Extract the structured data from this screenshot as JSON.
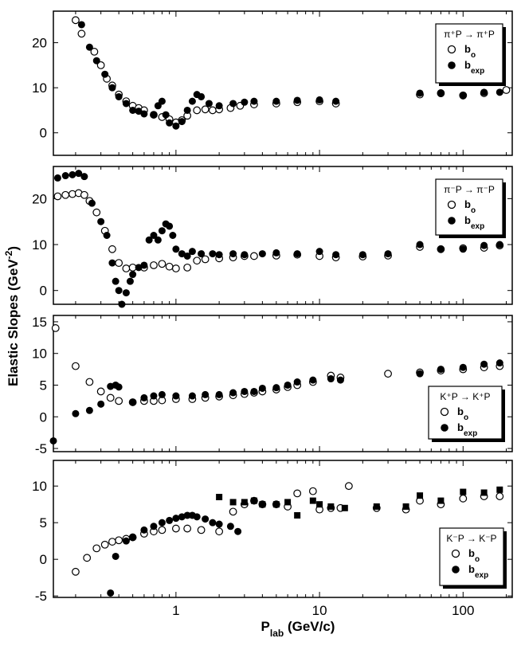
{
  "figure": {
    "ylabel": "Elastic Slopes (GeV",
    "ylabel_sup": "-2",
    "ylabel_close": ")",
    "xlabel_main": "P",
    "xlabel_sub": "lab",
    "xlabel_unit": " (GeV/c)",
    "x_tick_labels": [
      "1",
      "10",
      "100"
    ]
  },
  "chart_data": [
    {
      "type": "scatter",
      "title": "",
      "legend": {
        "reaction": "π⁺P → π⁺P",
        "placement": "top-right"
      },
      "xscale": "log",
      "xlim": [
        0.14,
        220
      ],
      "ylim": [
        -5,
        27
      ],
      "yticks": [
        0,
        10,
        20
      ],
      "series": [
        {
          "name": "b_o",
          "marker": "open-circle",
          "x": [
            0.2,
            0.22,
            0.27,
            0.3,
            0.33,
            0.36,
            0.4,
            0.45,
            0.5,
            0.55,
            0.6,
            0.7,
            0.8,
            0.9,
            1.0,
            1.1,
            1.2,
            1.4,
            1.6,
            1.8,
            2.0,
            2.4,
            2.8,
            3.5,
            5,
            7,
            10,
            13,
            50,
            70,
            100,
            140,
            200
          ],
          "y": [
            25,
            22,
            18,
            15,
            12,
            10.5,
            8.5,
            7,
            6,
            5.5,
            5,
            4,
            3.5,
            3,
            2.3,
            2.8,
            3.8,
            5,
            5.2,
            5,
            5.2,
            5.5,
            6,
            6.3,
            6.5,
            6.8,
            7,
            6.5,
            8.5,
            8.8,
            8.3,
            8.8,
            9.5
          ]
        },
        {
          "name": "b_exp",
          "marker": "filled-circle",
          "x": [
            0.22,
            0.25,
            0.28,
            0.32,
            0.36,
            0.4,
            0.45,
            0.5,
            0.55,
            0.6,
            0.7,
            0.75,
            0.8,
            0.85,
            0.9,
            1.0,
            1.1,
            1.2,
            1.3,
            1.4,
            1.5,
            1.7,
            2.0,
            2.5,
            3.0,
            3.5,
            5,
            7,
            10,
            13,
            50,
            70,
            100,
            140,
            180
          ],
          "y": [
            24,
            19,
            16,
            13,
            10,
            8,
            6.5,
            5,
            4.8,
            4.2,
            4,
            6,
            7,
            4,
            2.2,
            1.5,
            2.5,
            5,
            7,
            8.5,
            8,
            6.5,
            6,
            6.5,
            6.8,
            7,
            7,
            7.2,
            7.3,
            7,
            8.8,
            8.7,
            8.2,
            9,
            9
          ]
        }
      ]
    },
    {
      "type": "scatter",
      "title": "",
      "legend": {
        "reaction": "π⁻P → π⁻P",
        "placement": "top-right"
      },
      "xscale": "log",
      "xlim": [
        0.14,
        220
      ],
      "ylim": [
        -3,
        27
      ],
      "yticks": [
        0,
        10,
        20
      ],
      "series": [
        {
          "name": "b_o",
          "marker": "open-circle",
          "x": [
            0.15,
            0.17,
            0.19,
            0.21,
            0.23,
            0.25,
            0.28,
            0.32,
            0.36,
            0.4,
            0.45,
            0.5,
            0.6,
            0.7,
            0.8,
            0.9,
            1.0,
            1.2,
            1.4,
            1.6,
            2.0,
            2.5,
            3.0,
            3.5,
            5,
            7,
            10,
            13,
            20,
            30,
            50,
            70,
            100,
            140,
            180
          ],
          "y": [
            20.5,
            20.8,
            21,
            21.2,
            20.8,
            19.5,
            17,
            13,
            9,
            6,
            4.8,
            5,
            5,
            5.5,
            5.8,
            5.2,
            4.8,
            5,
            6.5,
            6.8,
            7,
            7.2,
            7.5,
            7.5,
            7.6,
            7.8,
            7.5,
            7.2,
            7.4,
            7.6,
            9.5,
            9,
            9.2,
            9.3,
            9.8
          ]
        },
        {
          "name": "b_exp",
          "marker": "filled-circle",
          "x": [
            0.15,
            0.17,
            0.19,
            0.21,
            0.23,
            0.26,
            0.3,
            0.33,
            0.36,
            0.38,
            0.4,
            0.42,
            0.45,
            0.48,
            0.5,
            0.55,
            0.6,
            0.65,
            0.7,
            0.75,
            0.8,
            0.85,
            0.9,
            0.95,
            1.0,
            1.1,
            1.2,
            1.3,
            1.5,
            1.8,
            2.0,
            2.5,
            3.0,
            4,
            5,
            7,
            10,
            13,
            20,
            30,
            50,
            70,
            100,
            140,
            180
          ],
          "y": [
            24.5,
            25,
            25.2,
            25.5,
            24.8,
            19,
            15,
            12,
            6,
            2,
            0,
            -3,
            -0.5,
            2,
            3.5,
            5,
            5.5,
            11,
            12,
            11,
            13,
            14.5,
            14,
            12,
            9,
            8,
            7.5,
            8.5,
            8,
            8,
            7.8,
            8,
            7.8,
            8,
            8.2,
            8,
            8.5,
            7.8,
            7.8,
            8,
            10,
            9,
            9,
            9.8,
            10
          ]
        }
      ]
    },
    {
      "type": "scatter",
      "title": "",
      "legend": {
        "reaction": "K⁺P → K⁺P",
        "placement": "bottom-right"
      },
      "xscale": "log",
      "xlim": [
        0.14,
        220
      ],
      "ylim": [
        -5.5,
        16
      ],
      "yticks": [
        -5,
        0,
        5,
        10,
        15
      ],
      "series": [
        {
          "name": "b_o",
          "marker": "open-circle",
          "x": [
            0.145,
            0.2,
            0.25,
            0.3,
            0.35,
            0.4,
            0.5,
            0.6,
            0.7,
            0.8,
            1.0,
            1.3,
            1.6,
            2.0,
            2.5,
            3.0,
            3.5,
            4,
            5,
            6,
            7,
            9,
            12,
            14,
            30,
            50,
            70,
            100,
            140,
            180
          ],
          "y": [
            14,
            8,
            5.5,
            4,
            3,
            2.5,
            2.3,
            2.5,
            2.5,
            2.6,
            2.8,
            2.8,
            3,
            3.2,
            3.4,
            3.6,
            3.8,
            4,
            4.3,
            4.7,
            5,
            5.5,
            6.5,
            6.2,
            6.8,
            7,
            7.3,
            7.5,
            7.8,
            8
          ]
        },
        {
          "name": "b_exp",
          "marker": "filled-circle",
          "x": [
            0.14,
            0.2,
            0.25,
            0.3,
            0.35,
            0.38,
            0.4,
            0.5,
            0.6,
            0.7,
            0.8,
            1.0,
            1.3,
            1.6,
            2.0,
            2.5,
            3.0,
            3.5,
            4,
            5,
            6,
            7,
            9,
            12,
            14,
            50,
            70,
            100,
            140,
            180
          ],
          "y": [
            -3.8,
            0.5,
            1,
            2,
            4.8,
            5,
            4.7,
            2.3,
            3,
            3.3,
            3.5,
            3.3,
            3.3,
            3.5,
            3.5,
            3.8,
            4,
            4,
            4.5,
            4.6,
            5,
            5.5,
            5.8,
            6,
            5.8,
            6.8,
            7.5,
            7.8,
            8.3,
            8.5
          ]
        }
      ]
    },
    {
      "type": "scatter",
      "title": "",
      "legend": {
        "reaction": "K⁻P → K⁻P",
        "placement": "bottom-right"
      },
      "xscale": "log",
      "xlim": [
        0.14,
        220
      ],
      "ylim": [
        -5.2,
        13.5
      ],
      "yticks": [
        -5,
        0,
        5,
        10
      ],
      "series": [
        {
          "name": "b_o",
          "marker": "open-circle",
          "x": [
            0.2,
            0.24,
            0.28,
            0.32,
            0.36,
            0.4,
            0.45,
            0.5,
            0.6,
            0.7,
            0.8,
            1.0,
            1.2,
            1.5,
            2.0,
            2.5,
            3.0,
            3.5,
            4,
            5,
            6,
            7,
            9,
            10,
            12,
            14,
            16,
            25,
            40,
            50,
            70,
            100,
            140,
            180
          ],
          "y": [
            -1.7,
            0.2,
            1.5,
            2,
            2.4,
            2.6,
            2.8,
            3,
            3.5,
            3.8,
            4,
            4.2,
            4.2,
            4,
            3.8,
            6.5,
            7.5,
            8,
            7.5,
            7.5,
            7.2,
            9,
            9.3,
            6.8,
            7,
            7,
            10,
            7,
            6.8,
            8,
            7.5,
            8.3,
            8.6,
            8.6
          ]
        },
        {
          "name": "b_exp",
          "marker": "filled-circle",
          "x": [
            0.35,
            0.38,
            0.45,
            0.5,
            0.6,
            0.7,
            0.8,
            0.9,
            1.0,
            1.1,
            1.2,
            1.3,
            1.4,
            1.6,
            1.8,
            2.0,
            2.4,
            2.7
          ],
          "y": [
            -4.6,
            0.4,
            2.5,
            3,
            4,
            4.5,
            5,
            5.3,
            5.6,
            5.8,
            6,
            6,
            5.8,
            5.5,
            5,
            4.8,
            4.5,
            3.8
          ]
        },
        {
          "name": "",
          "marker": "filled-square",
          "x": [
            2.0,
            2.5,
            3.0,
            3.5,
            4,
            5,
            6,
            7,
            9,
            10,
            12,
            15,
            25,
            40,
            50,
            70,
            100,
            140,
            180
          ],
          "y": [
            8.5,
            7.8,
            7.8,
            8,
            7.5,
            7.5,
            7.8,
            6,
            8,
            7.5,
            7.2,
            7,
            7.2,
            7.2,
            8.7,
            8,
            9.2,
            9.1,
            9.5
          ]
        }
      ]
    }
  ]
}
